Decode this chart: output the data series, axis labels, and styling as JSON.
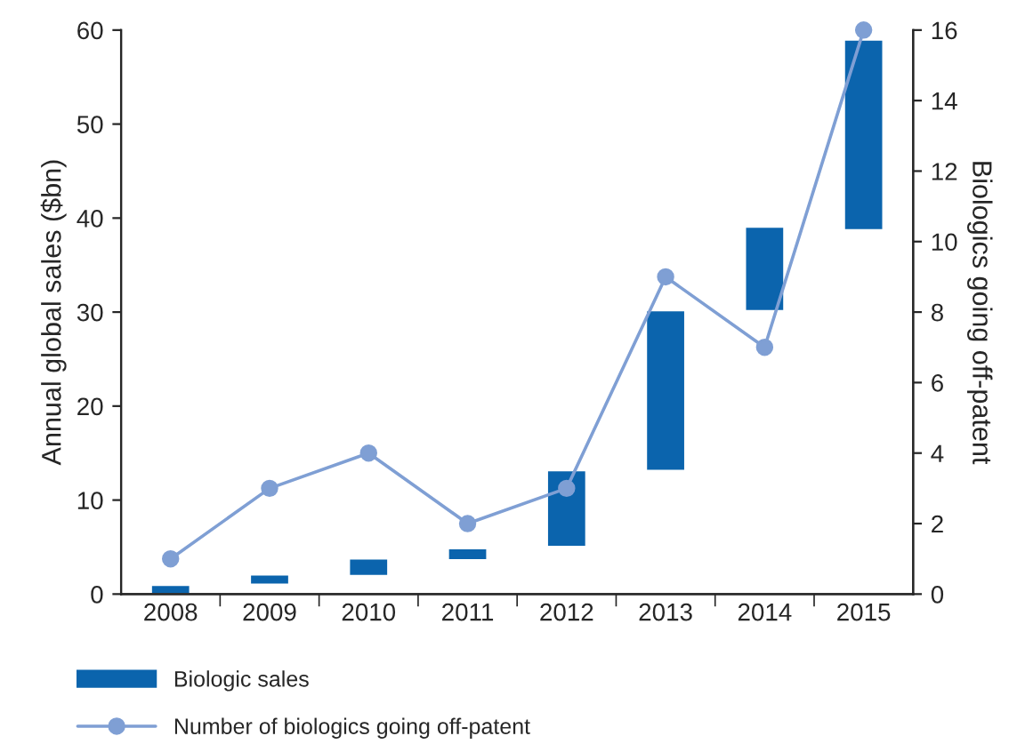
{
  "chart_data": {
    "type": "bar",
    "categories": [
      "2008",
      "2009",
      "2010",
      "2011",
      "2012",
      "2013",
      "2014",
      "2015"
    ],
    "series": [
      {
        "name": "Biologic sales",
        "color": "#0b64ad",
        "values": [
          1.0,
          1.1,
          1.9,
          1.3,
          8.2,
          17.1,
          9.0,
          20.3
        ],
        "base": [
          0,
          1.0,
          1.9,
          3.6,
          5.0,
          13.1,
          30.1,
          38.7
        ]
      },
      {
        "name": "Number of biologics going off-patent",
        "type": "line",
        "axis": "y2",
        "color": "#7f9fd4",
        "marker": "circle",
        "values": [
          1,
          3,
          4,
          2,
          3,
          9,
          7,
          16
        ]
      }
    ],
    "ylabel": "Annual global sales ($bn)",
    "y2label": "Biologics going off-patent",
    "ylim": [
      0,
      60
    ],
    "yticks": [
      0,
      10,
      20,
      30,
      40,
      50,
      60
    ],
    "y2lim": [
      0,
      16
    ],
    "y2ticks": [
      0,
      2,
      4,
      6,
      8,
      10,
      12,
      14,
      16
    ],
    "grid": false,
    "legend": "bottom left"
  }
}
